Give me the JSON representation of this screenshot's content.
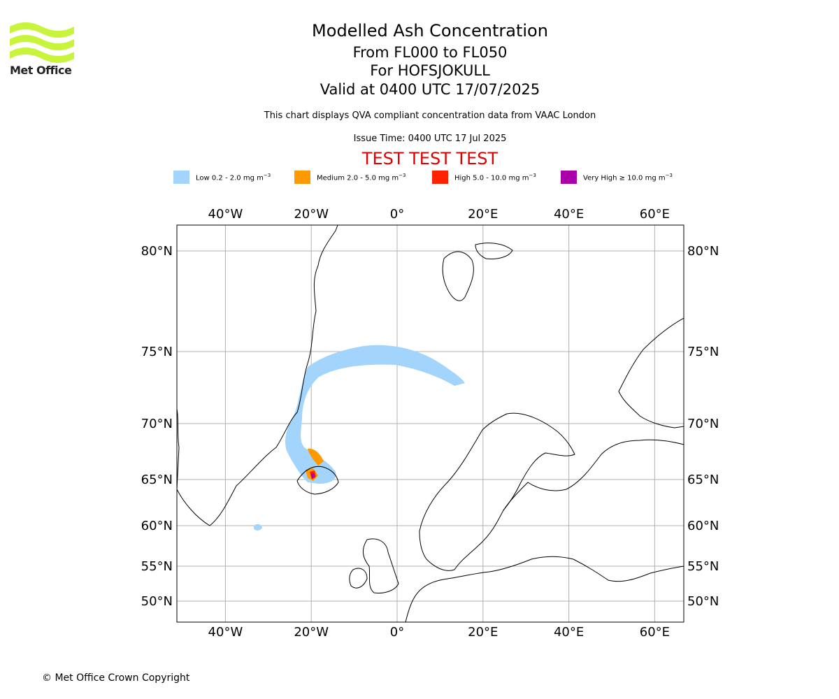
{
  "header": {
    "title": "Modelled Ash Concentration",
    "levels": "From FL000 to FL050",
    "volcano": "For HOFSJOKULL",
    "valid": "Valid at 0400 UTC 17/07/2025",
    "subtitle": "This chart displays QVA compliant concentration data from VAAC London",
    "issue_time": "Issue Time: 0400 UTC 17 Jul 2025",
    "test_banner": "TEST TEST TEST"
  },
  "logo": {
    "text": "Met Office",
    "color": "#c8f53c"
  },
  "legend": [
    {
      "label": "Low 0.2 - 2.0 mg m",
      "exp": "−3",
      "color": "#a3d4fb"
    },
    {
      "label": "Medium 2.0 - 5.0 mg m",
      "exp": "−3",
      "color": "#ff9900"
    },
    {
      "label": "High 5.0 - 10.0 mg m",
      "exp": "−3",
      "color": "#ff2200"
    },
    {
      "label": "Very High ≥ 10.0 mg m",
      "exp": "−3",
      "color": "#aa00aa"
    }
  ],
  "map": {
    "lon_ticks": [
      "40°W",
      "20°W",
      "0°",
      "20°E",
      "40°E",
      "60°E"
    ],
    "lon_values": [
      -40,
      -20,
      0,
      20,
      40,
      60
    ],
    "lat_ticks": [
      "80°N",
      "75°N",
      "70°N",
      "65°N",
      "60°N",
      "55°N",
      "50°N"
    ],
    "lat_values": [
      80,
      75,
      70,
      65,
      60,
      55,
      50
    ]
  },
  "footer": {
    "copyright": "© Met Office Crown Copyright"
  }
}
